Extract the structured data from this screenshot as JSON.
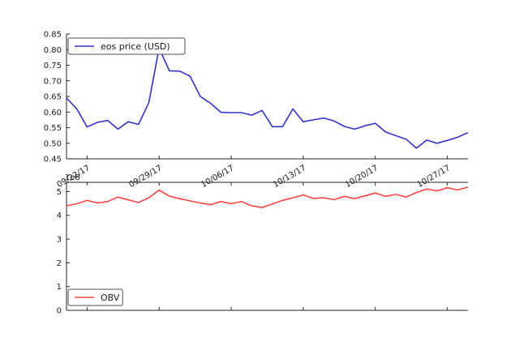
{
  "figure": {
    "background": "#ffffff",
    "axis_color": "#262626",
    "legend_border_color": "#4d4d4d",
    "legend_background": "#ffffff"
  },
  "chart_data": [
    {
      "type": "line",
      "title": "",
      "xlabel": "",
      "ylabel": "",
      "legend": {
        "label": "eos price (USD)",
        "position": "upper-left"
      },
      "line_color": "#3333cc",
      "grid": false,
      "ylim": [
        0.45,
        0.85
      ],
      "ytick_labels": [
        "0.45",
        "0.50",
        "0.55",
        "0.60",
        "0.65",
        "0.70",
        "0.75",
        "0.80",
        "0.85"
      ],
      "ytick_values": [
        0.45,
        0.5,
        0.55,
        0.6,
        0.65,
        0.7,
        0.75,
        0.8,
        0.85
      ],
      "xtick_labels": [
        "09/22/17",
        "09/29/17",
        "10/06/17",
        "10/13/17",
        "10/20/17",
        "10/27/17"
      ],
      "xtick_indices": [
        2,
        9,
        16,
        23,
        30,
        37
      ],
      "x": [
        "09/20/17",
        "09/21/17",
        "09/22/17",
        "09/23/17",
        "09/24/17",
        "09/25/17",
        "09/26/17",
        "09/27/17",
        "09/28/17",
        "09/29/17",
        "09/30/17",
        "10/01/17",
        "10/02/17",
        "10/03/17",
        "10/04/17",
        "10/05/17",
        "10/06/17",
        "10/07/17",
        "10/08/17",
        "10/09/17",
        "10/10/17",
        "10/11/17",
        "10/12/17",
        "10/13/17",
        "10/14/17",
        "10/15/17",
        "10/16/17",
        "10/17/17",
        "10/18/17",
        "10/19/17",
        "10/20/17",
        "10/21/17",
        "10/22/17",
        "10/23/17",
        "10/24/17",
        "10/25/17",
        "10/26/17",
        "10/27/17",
        "10/28/17",
        "10/29/17"
      ],
      "values": [
        0.645,
        0.61,
        0.552,
        0.567,
        0.573,
        0.545,
        0.569,
        0.56,
        0.63,
        0.805,
        0.732,
        0.731,
        0.715,
        0.65,
        0.628,
        0.599,
        0.598,
        0.598,
        0.59,
        0.605,
        0.553,
        0.553,
        0.61,
        0.569,
        0.575,
        0.581,
        0.571,
        0.554,
        0.545,
        0.556,
        0.564,
        0.536,
        0.524,
        0.513,
        0.484,
        0.51,
        0.5,
        0.509,
        0.519,
        0.534
      ]
    },
    {
      "type": "line",
      "title": "",
      "xlabel": "",
      "ylabel": "",
      "legend": {
        "label": "OBV",
        "position": "lower-left"
      },
      "line_color": "#ff4444",
      "grid": false,
      "offset_label": "1e8",
      "ylim": [
        0,
        5.39
      ],
      "ytick_labels": [
        "0",
        "1",
        "2",
        "3",
        "4",
        "5"
      ],
      "ytick_values": [
        0,
        1,
        2,
        3,
        4,
        5
      ],
      "xtick_labels": [],
      "xtick_indices": [
        2,
        9,
        16,
        23,
        30,
        37
      ],
      "x": [
        "09/20/17",
        "09/21/17",
        "09/22/17",
        "09/23/17",
        "09/24/17",
        "09/25/17",
        "09/26/17",
        "09/27/17",
        "09/28/17",
        "09/29/17",
        "09/30/17",
        "10/01/17",
        "10/02/17",
        "10/03/17",
        "10/04/17",
        "10/05/17",
        "10/06/17",
        "10/07/17",
        "10/08/17",
        "10/09/17",
        "10/10/17",
        "10/11/17",
        "10/12/17",
        "10/13/17",
        "10/14/17",
        "10/15/17",
        "10/16/17",
        "10/17/17",
        "10/18/17",
        "10/19/17",
        "10/20/17",
        "10/21/17",
        "10/22/17",
        "10/23/17",
        "10/24/17",
        "10/25/17",
        "10/26/17",
        "10/27/17",
        "10/28/17",
        "10/29/17"
      ],
      "values": [
        4.4,
        4.49,
        4.63,
        4.52,
        4.58,
        4.77,
        4.65,
        4.54,
        4.74,
        5.06,
        4.81,
        4.7,
        4.61,
        4.52,
        4.45,
        4.58,
        4.49,
        4.58,
        4.4,
        4.33,
        4.48,
        4.63,
        4.74,
        4.86,
        4.71,
        4.74,
        4.66,
        4.8,
        4.7,
        4.82,
        4.94,
        4.8,
        4.88,
        4.77,
        4.96,
        5.11,
        5.03,
        5.16,
        5.07,
        5.19
      ]
    }
  ]
}
